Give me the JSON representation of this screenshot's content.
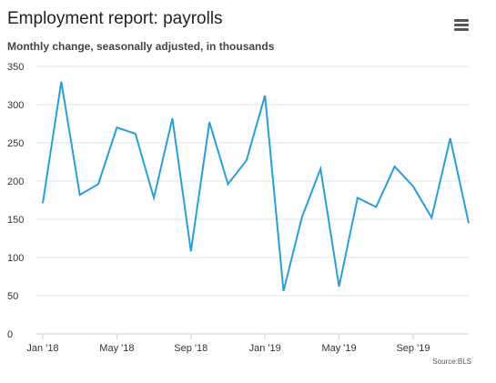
{
  "header": {
    "menu_icon": "hamburger-menu-icon"
  },
  "colors": {
    "line": "#2a9fd6",
    "grid": "#e6e6e6",
    "axis": "#cfcfcf"
  },
  "chart_data": {
    "type": "line",
    "title": "Employment report: payrolls",
    "subtitle": "Monthly change, seasonally adjusted, in thousands",
    "source": "Source:BLS",
    "xlabel": "",
    "ylabel": "",
    "ylim": [
      0,
      350
    ],
    "yticks": [
      0,
      50,
      100,
      150,
      200,
      250,
      300,
      350
    ],
    "x": [
      "Jan 2018",
      "Feb 2018",
      "Mar 2018",
      "Apr 2018",
      "May 2018",
      "Jun 2018",
      "Jul 2018",
      "Aug 2018",
      "Sep 2018",
      "Oct 2018",
      "Nov 2018",
      "Dec 2018",
      "Jan 2019",
      "Feb 2019",
      "Mar 2019",
      "Apr 2019",
      "May 2019",
      "Jun 2019",
      "Jul 2019",
      "Aug 2019",
      "Sep 2019",
      "Oct 2019",
      "Nov 2019",
      "Dec 2019"
    ],
    "xtick_labels": [
      "Jan '18",
      "May '18",
      "Sep '18",
      "Jan '19",
      "May '19",
      "Sep '19"
    ],
    "xtick_months": [
      "Jan 2018",
      "May 2018",
      "Sep 2018",
      "Jan 2019",
      "May 2019",
      "Sep 2019"
    ],
    "series": [
      {
        "values": [
          171,
          330,
          182,
          196,
          270,
          262,
          178,
          282,
          108,
          277,
          196,
          227,
          312,
          56,
          153,
          216,
          62,
          178,
          166,
          219,
          193,
          152,
          256,
          145
        ]
      }
    ],
    "grid": true,
    "legend": "none"
  }
}
